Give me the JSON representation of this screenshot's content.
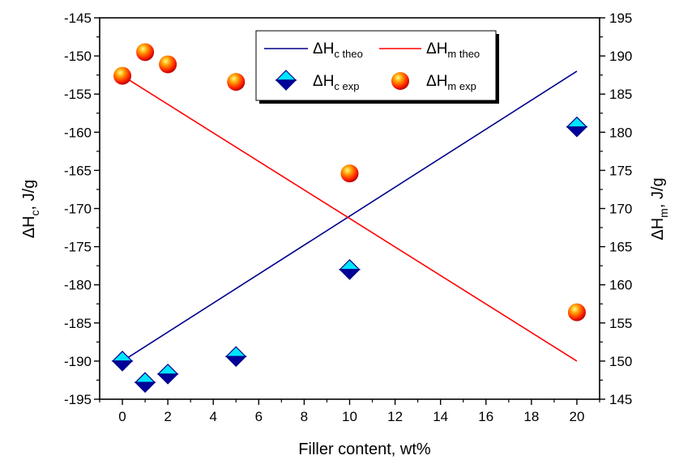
{
  "chart_data": {
    "type": "scatter",
    "x": {
      "label": "Filler content, wt%",
      "ticks": [
        0,
        2,
        4,
        6,
        8,
        10,
        12,
        14,
        16,
        18,
        20
      ],
      "range": [
        -1,
        21
      ]
    },
    "y_left": {
      "label_main": "ΔH",
      "label_sub": "c",
      "label_unit": ", J/g",
      "ticks": [
        -145,
        -150,
        -155,
        -160,
        -165,
        -170,
        -175,
        -180,
        -185,
        -190,
        -195
      ],
      "range": [
        -195,
        -145
      ]
    },
    "y_right": {
      "label_main": "ΔH",
      "label_sub": "m",
      "label_unit": ", J/g",
      "ticks": [
        195,
        190,
        185,
        180,
        175,
        170,
        165,
        160,
        155,
        150,
        145
      ],
      "range": [
        145,
        195
      ]
    },
    "series": [
      {
        "name": "c theo",
        "axis": "left",
        "kind": "line",
        "color": "#00008B",
        "x": [
          0,
          20
        ],
        "y": [
          -190,
          -152
        ]
      },
      {
        "name": "m theo",
        "axis": "right",
        "kind": "line",
        "color": "#FF0000",
        "x": [
          0,
          20
        ],
        "y": [
          187.4,
          150
        ]
      },
      {
        "name": "c exp",
        "axis": "left",
        "kind": "diamond",
        "color": "#00CCFF",
        "x": [
          0,
          1,
          2,
          5,
          10,
          20
        ],
        "y": [
          -190,
          -192.8,
          -191.7,
          -189.4,
          -178,
          -159.3
        ]
      },
      {
        "name": "m exp",
        "axis": "right",
        "kind": "sphere",
        "color": "#FF2000",
        "x": [
          0,
          1,
          2,
          5,
          10,
          20
        ],
        "y": [
          187.4,
          190.5,
          188.9,
          186.6,
          174.6,
          156.4
        ]
      }
    ],
    "legend": {
      "position": "top-center",
      "items": [
        {
          "main": "ΔH",
          "sub": "c theo"
        },
        {
          "main": "ΔH",
          "sub": "m theo"
        },
        {
          "main": "ΔH",
          "sub": "c exp"
        },
        {
          "main": "ΔH",
          "sub": "m exp"
        }
      ]
    }
  }
}
